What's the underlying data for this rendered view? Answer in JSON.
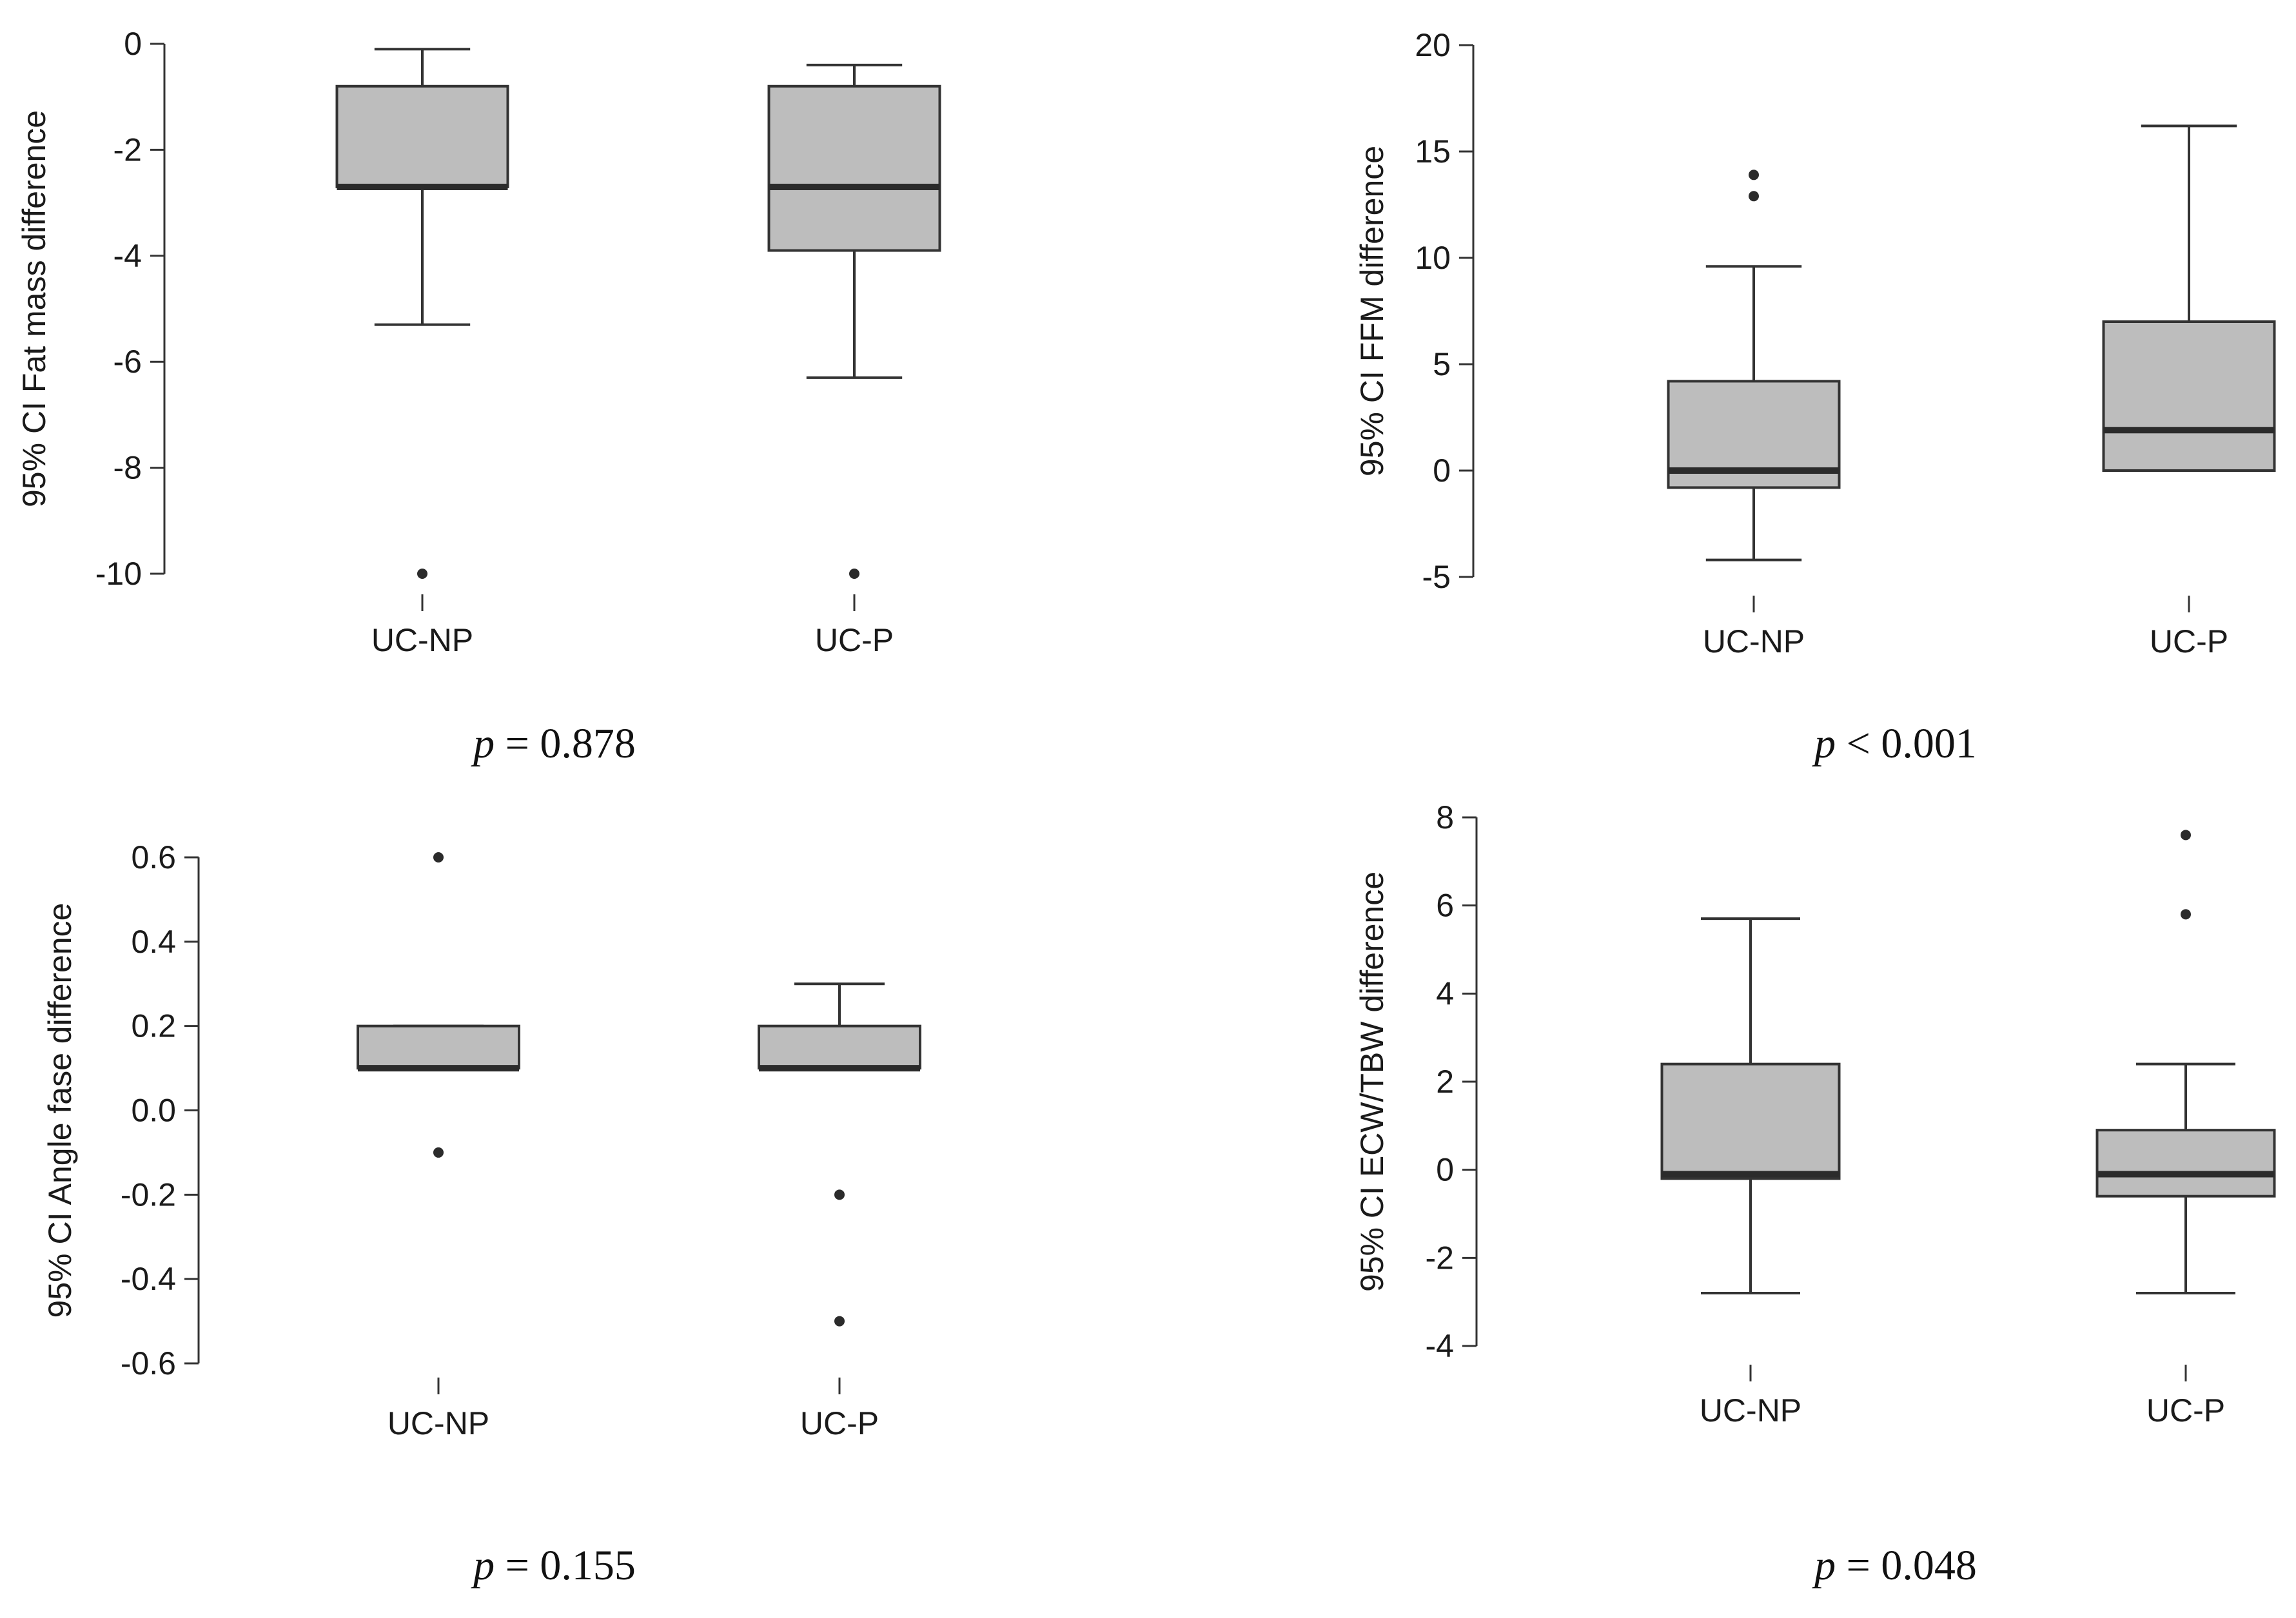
{
  "style": {
    "box_fill": "#bdbdbd",
    "stroke": "#333333",
    "median": "#2b2b2b",
    "outlier": "#2b2b2b"
  },
  "chart_data": [
    {
      "type": "boxplot",
      "ylabel": "95% CI Fat mass difference",
      "ylim": [
        -10,
        0
      ],
      "yticks": [
        0,
        -2,
        -4,
        -6,
        -8,
        -10
      ],
      "ytick_labels": [
        "0",
        "-2",
        "-4",
        "-6",
        "-8",
        "-10"
      ],
      "categories": [
        "UC-NP",
        "UC-P"
      ],
      "boxes": [
        {
          "whisker_low": -5.3,
          "q1": -2.7,
          "median": -2.7,
          "q3": -0.8,
          "whisker_high": -0.1,
          "outliers": [
            -10
          ]
        },
        {
          "whisker_low": -6.3,
          "q1": -3.9,
          "median": -2.7,
          "q3": -0.8,
          "whisker_high": -0.4,
          "outliers": [
            -10
          ]
        }
      ],
      "p_prefix": "p",
      "p_text": " = 0.878"
    },
    {
      "type": "boxplot",
      "ylabel": "95% CI FFM difference",
      "ylim": [
        -5,
        20
      ],
      "yticks": [
        20,
        15,
        10,
        5,
        0,
        -5
      ],
      "ytick_labels": [
        "20",
        "15",
        "10",
        "5",
        "0",
        "-5"
      ],
      "categories": [
        "UC-NP",
        "UC-P"
      ],
      "boxes": [
        {
          "whisker_low": -4.2,
          "q1": -0.8,
          "median": 0,
          "q3": 4.2,
          "whisker_high": 9.6,
          "outliers": [
            12.9,
            13.9
          ]
        },
        {
          "whisker_low": 0,
          "q1": 0,
          "median": 1.9,
          "q3": 7.0,
          "whisker_high": 16.2,
          "outliers": []
        }
      ],
      "p_prefix": "p",
      "p_text": " < 0.001"
    },
    {
      "type": "boxplot",
      "ylabel": "95% CI Angle fase difference",
      "ylim": [
        -0.6,
        0.6
      ],
      "yticks": [
        0.6,
        0.4,
        0.2,
        0.0,
        -0.2,
        -0.4,
        -0.6
      ],
      "ytick_labels": [
        "0.6",
        "0.4",
        "0.2",
        "0.0",
        "-0.2",
        "-0.4",
        "-0.6"
      ],
      "categories": [
        "UC-NP",
        "UC-P"
      ],
      "boxes": [
        {
          "whisker_low": 0.1,
          "q1": 0.1,
          "median": 0.1,
          "q3": 0.2,
          "whisker_high": 0.2,
          "outliers": [
            0.6,
            -0.1
          ]
        },
        {
          "whisker_low": 0.1,
          "q1": 0.1,
          "median": 0.1,
          "q3": 0.2,
          "whisker_high": 0.3,
          "outliers": [
            -0.2,
            -0.5
          ]
        }
      ],
      "p_prefix": "p",
      "p_text": " = 0.155"
    },
    {
      "type": "boxplot",
      "ylabel": "95% CI ECW/TBW difference",
      "ylim": [
        -4,
        8
      ],
      "yticks": [
        8,
        6,
        4,
        2,
        0,
        -2,
        -4
      ],
      "ytick_labels": [
        "8",
        "6",
        "4",
        "2",
        "0",
        "-2",
        "-4"
      ],
      "categories": [
        "UC-NP",
        "UC-P"
      ],
      "boxes": [
        {
          "whisker_low": -2.8,
          "q1": -0.2,
          "median": -0.1,
          "q3": 2.4,
          "whisker_high": 5.7,
          "outliers": []
        },
        {
          "whisker_low": -2.8,
          "q1": -0.6,
          "median": -0.1,
          "q3": 0.9,
          "whisker_high": 2.4,
          "outliers": [
            7.6,
            5.8
          ]
        }
      ],
      "p_prefix": "p",
      "p_text": " = 0.048"
    }
  ]
}
